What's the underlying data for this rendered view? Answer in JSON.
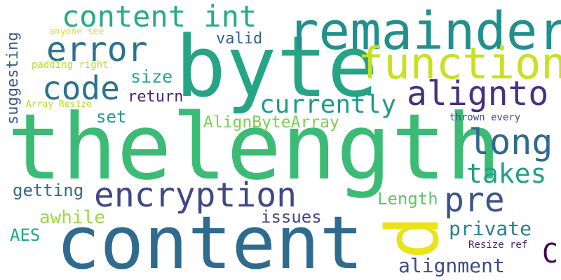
{
  "words": [
    {
      "key": "thelength",
      "text": "thelength",
      "color": "#3bbb75"
    },
    {
      "key": "byte",
      "text": "byte",
      "color": "#25a584"
    },
    {
      "key": "content",
      "text": "content",
      "color": "#2f6b8e"
    },
    {
      "key": "remainder",
      "text": "remainder",
      "color": "#21908d"
    },
    {
      "key": "function",
      "text": "function",
      "color": "#c8e020"
    },
    {
      "key": "content_int",
      "text": "content int",
      "color": "#25ab82"
    },
    {
      "key": "aligntto",
      "text": "alignto",
      "color": "#46317e"
    },
    {
      "key": "long",
      "text": "long",
      "color": "#30698e"
    },
    {
      "key": "error",
      "text": "error",
      "color": "#2d718e"
    },
    {
      "key": "code",
      "text": "code",
      "color": "#2c728e"
    },
    {
      "key": "currently",
      "text": "currently",
      "color": "#1f9a8a"
    },
    {
      "key": "encryption",
      "text": "encryption",
      "color": "#3f4788"
    },
    {
      "key": "pre",
      "text": "pre",
      "color": "#3b528b"
    },
    {
      "key": "takes",
      "text": "takes",
      "color": "#1fa088"
    },
    {
      "key": "p",
      "text": "p",
      "color": "#e8e419"
    },
    {
      "key": "AlignByteArray",
      "text": "AlignByteArray",
      "color": "#7ad151"
    },
    {
      "key": "alignment",
      "text": "alignment",
      "color": "#3e4a89"
    },
    {
      "key": "private",
      "text": "private",
      "color": "#26828e"
    },
    {
      "key": "valid",
      "text": "valid",
      "color": "#355f8d"
    },
    {
      "key": "size",
      "text": "size",
      "color": "#25ab82"
    },
    {
      "key": "return",
      "text": "return",
      "color": "#482475"
    },
    {
      "key": "set",
      "text": "set",
      "color": "#1e9c89"
    },
    {
      "key": "getting",
      "text": "getting",
      "color": "#31688e"
    },
    {
      "key": "awhile",
      "text": "awhile",
      "color": "#9dd93b"
    },
    {
      "key": "issues",
      "text": "issues",
      "color": "#404588"
    },
    {
      "key": "Length",
      "text": "Length",
      "color": "#5cc863"
    },
    {
      "key": "AES",
      "text": "AES",
      "color": "#22a785"
    },
    {
      "key": "C",
      "text": "C",
      "color": "#440154"
    },
    {
      "key": "suggesting",
      "text": "suggesting",
      "color": "#39568c"
    },
    {
      "key": "anyone_see",
      "text": "anyone see",
      "color": "#dde318"
    },
    {
      "key": "padding_right",
      "text": "padding right",
      "color": "#b8de29"
    },
    {
      "key": "Array_Resize",
      "text": "Array Resize",
      "color": "#b5de2b"
    },
    {
      "key": "thrown_every",
      "text": "thrown every",
      "color": "#3e4989"
    },
    {
      "key": "Resize_ref",
      "text": "Resize ref",
      "color": "#481f70"
    }
  ]
}
